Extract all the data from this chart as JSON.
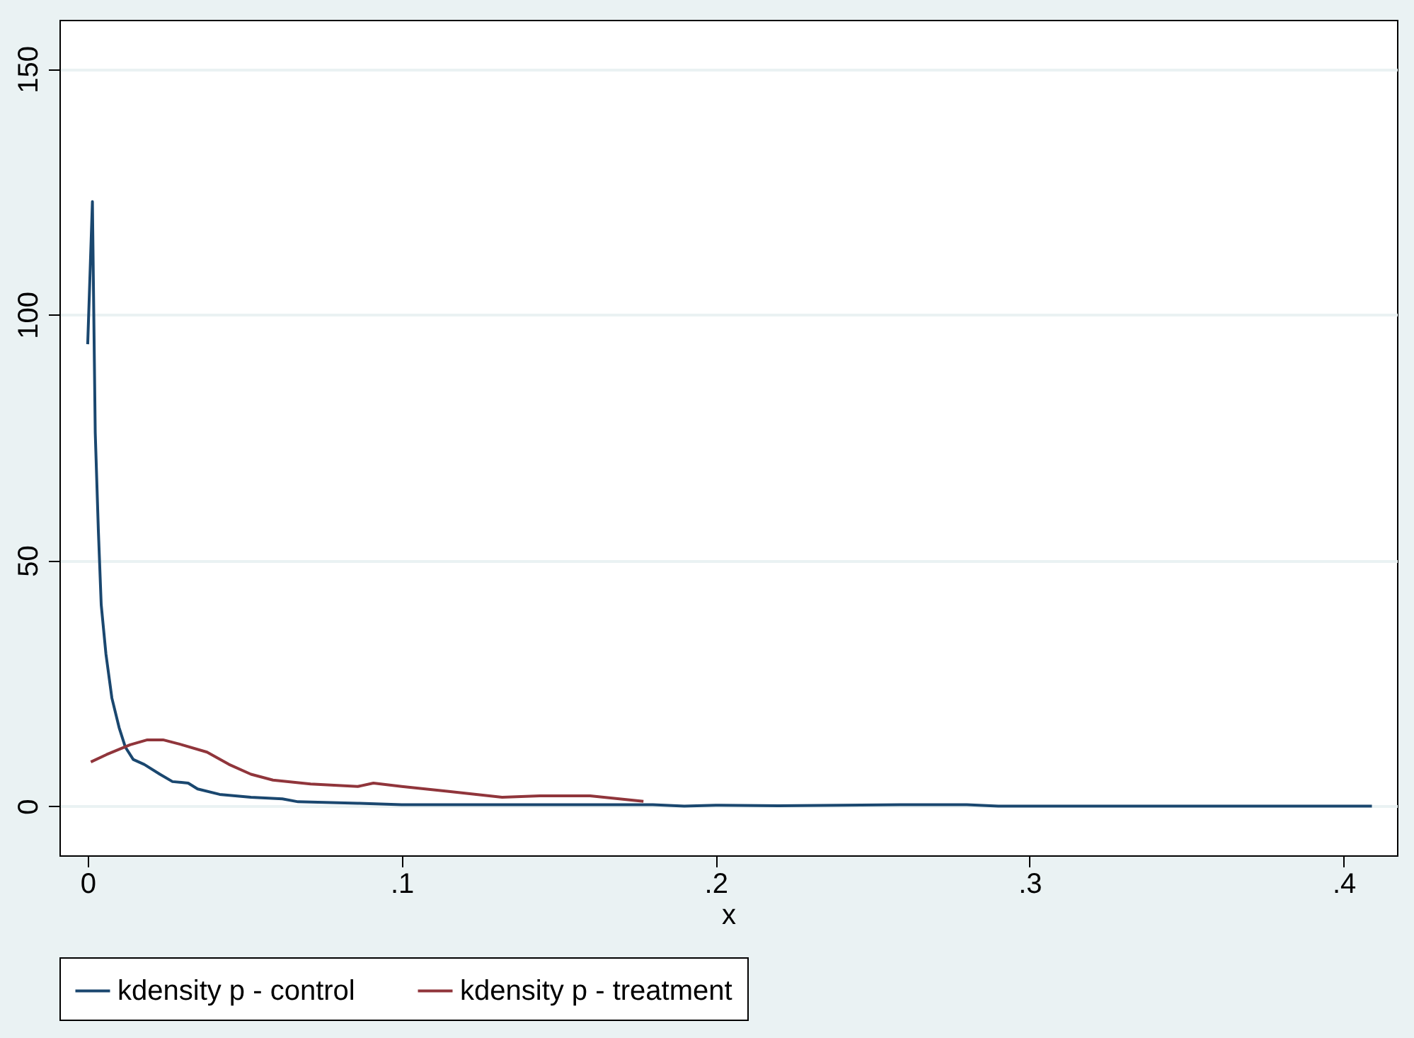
{
  "chart_data": {
    "type": "line",
    "xlabel": "x",
    "xlim": [
      -0.009,
      0.417
    ],
    "ylim": [
      -10,
      160
    ],
    "xticks": [
      0,
      {
        "value": 0.1,
        "label": ".1"
      },
      {
        "value": 0.2,
        "label": ".2"
      },
      {
        "value": 0.3,
        "label": ".3"
      },
      {
        "value": 0.4,
        "label": ".4"
      }
    ],
    "yticks": [
      0,
      50,
      100,
      150
    ],
    "grid": "y",
    "legend": "bottom",
    "line_style": "solid",
    "series": [
      {
        "name": "kdensity p - control",
        "color": "#1a476f",
        "x": [
          0.0,
          0.0015,
          0.0024,
          0.0034,
          0.0043,
          0.0058,
          0.0077,
          0.01,
          0.012,
          0.0145,
          0.018,
          0.023,
          0.027,
          0.032,
          0.035,
          0.042,
          0.052,
          0.062,
          0.067,
          0.086,
          0.1,
          0.15,
          0.18,
          0.19,
          0.2,
          0.22,
          0.24,
          0.26,
          0.28,
          0.29,
          0.3,
          0.35,
          0.409
        ],
        "values": [
          94,
          123,
          76,
          56,
          41,
          31,
          22,
          16,
          12,
          9.5,
          8.5,
          6.5,
          5,
          4.7,
          3.5,
          2.4,
          1.8,
          1.5,
          0.9,
          0.6,
          0.3,
          0.3,
          0.3,
          0,
          0.2,
          0.1,
          0.2,
          0.3,
          0.3,
          0,
          0,
          0,
          0
        ]
      },
      {
        "name": "kdensity p - treatment",
        "color": "#90353b",
        "x": [
          0.001,
          0.006,
          0.0135,
          0.019,
          0.024,
          0.03,
          0.038,
          0.045,
          0.052,
          0.059,
          0.071,
          0.086,
          0.091,
          0.1,
          0.115,
          0.132,
          0.144,
          0.16,
          0.177
        ],
        "values": [
          9,
          10.5,
          12.5,
          13.5,
          13.5,
          12.5,
          11,
          8.5,
          6.5,
          5.3,
          4.5,
          4.0,
          4.7,
          4.0,
          3.0,
          1.8,
          2.1,
          2.1,
          1.0
        ]
      }
    ]
  }
}
